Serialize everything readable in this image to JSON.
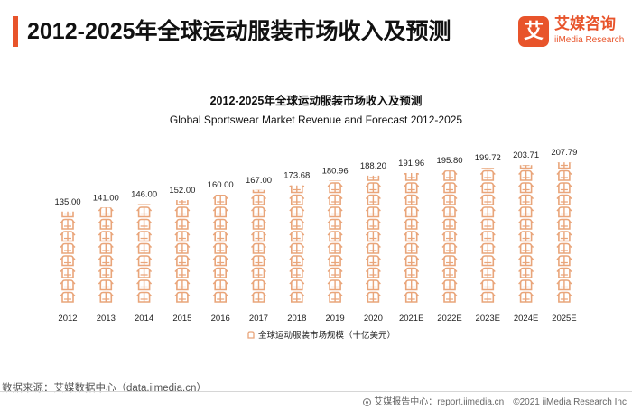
{
  "header": {
    "title": "2012-2025年全球运动服装市场收入及预测"
  },
  "logo": {
    "mark": "艾",
    "name_cn": "艾媒咨询",
    "name_en": "iiMedia Research"
  },
  "footer": {
    "source": "数据来源：艾媒数据中心（data.iimedia.cn）",
    "report": "艾媒报告中心：report.iimedia.cn",
    "copyright": "©2021 iiMedia Research Inc"
  },
  "colors": {
    "accent": "#e8542b",
    "bar": "#e9a57a"
  },
  "chart_data": {
    "type": "bar",
    "title": "2012-2025年全球运动服装市场收入及预测",
    "subtitle": "Global Sportswear Market Revenue and Forecast 2012-2025",
    "categories": [
      "2012",
      "2013",
      "2014",
      "2015",
      "2016",
      "2017",
      "2018",
      "2019",
      "2020",
      "2021E",
      "2022E",
      "2023E",
      "2024E",
      "2025E"
    ],
    "series": [
      {
        "name": "全球运动服装市场规模（十亿美元）",
        "values": [
          135.0,
          141.0,
          146.0,
          152.0,
          160.0,
          167.0,
          173.68,
          180.96,
          188.2,
          191.96,
          195.8,
          199.72,
          203.71,
          207.79
        ]
      }
    ],
    "value_labels": [
      "135.00",
      "141.00",
      "146.00",
      "152.00",
      "160.00",
      "167.00",
      "173.68",
      "180.96",
      "188.20",
      "191.96",
      "195.80",
      "199.72",
      "203.71",
      "207.79"
    ],
    "ylim": [
      0,
      210
    ],
    "grid": false,
    "legend_position": "bottom-center",
    "bar_style": "pictorial"
  }
}
